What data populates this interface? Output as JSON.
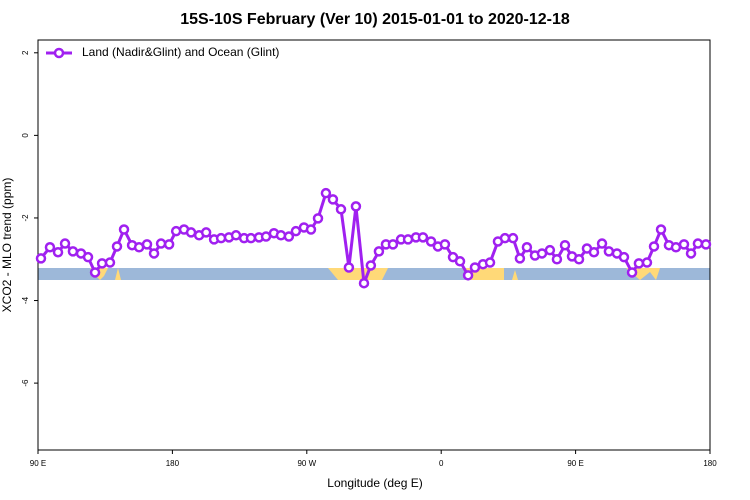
{
  "chart_data": {
    "type": "line",
    "title": "15S-10S February (Ver 10)   2015-01-01 to 2020-12-18",
    "x_label": "Longitude (deg E)",
    "y_label": "XCO2 - MLO trend (ppm)",
    "legend": "top-left",
    "x": [
      92.0,
      98.0,
      103.4,
      108.1,
      113.4,
      118.8,
      123.5,
      128.2,
      132.9,
      138.2,
      142.9,
      147.6,
      153.0,
      157.7,
      163.0,
      167.7,
      172.4,
      177.8,
      182.5,
      187.8,
      192.5,
      197.9,
      202.6,
      207.9,
      212.6,
      217.9,
      222.6,
      228.0,
      232.6,
      238.0,
      242.7,
      248.0,
      252.7,
      258.0,
      262.7,
      268.1,
      272.8,
      277.5,
      282.8,
      287.5,
      292.9,
      298.2,
      302.9,
      308.3,
      312.9,
      318.3,
      323.0,
      327.7,
      333.1,
      337.8,
      343.1,
      347.8,
      353.2,
      357.8,
      362.5,
      367.9,
      372.6,
      378.0,
      382.6,
      388.0,
      392.7,
      398.0,
      402.7,
      408.1,
      412.7,
      417.4,
      422.8,
      427.5,
      432.8,
      437.5,
      442.9,
      447.6,
      452.3,
      457.6,
      462.3,
      467.7,
      472.3,
      477.7,
      482.4,
      487.8,
      492.4,
      497.8,
      502.5,
      507.2,
      512.5,
      517.2,
      522.6,
      527.3,
      531.9,
      537.3
    ],
    "series": [
      {
        "name": "Land (Nadir&Glint) and Ocean (Glint)",
        "color": "#a020f0",
        "values": [
          -2.98,
          -2.71,
          -2.83,
          -2.62,
          -2.81,
          -2.86,
          -2.95,
          -3.32,
          -3.1,
          -3.08,
          -2.69,
          -2.28,
          -2.66,
          -2.71,
          -2.64,
          -2.86,
          -2.62,
          -2.64,
          -2.32,
          -2.28,
          -2.35,
          -2.42,
          -2.35,
          -2.52,
          -2.49,
          -2.47,
          -2.42,
          -2.49,
          -2.49,
          -2.47,
          -2.45,
          -2.37,
          -2.42,
          -2.45,
          -2.32,
          -2.23,
          -2.28,
          -2.01,
          -1.4,
          -1.55,
          -1.79,
          -3.2,
          -1.72,
          -3.58,
          -3.15,
          -2.81,
          -2.64,
          -2.64,
          -2.52,
          -2.52,
          -2.47,
          -2.47,
          -2.57,
          -2.69,
          -2.64,
          -2.95,
          -3.05,
          -3.39,
          -3.2,
          -3.12,
          -3.08,
          -2.57,
          -2.49,
          -2.49,
          -2.98,
          -2.71,
          -2.91,
          -2.86,
          -2.78,
          -3.0,
          -2.66,
          -2.93,
          -3.0,
          -2.74,
          -2.83,
          -2.62,
          -2.81,
          -2.86,
          -2.95,
          -3.32,
          -3.1,
          -3.08,
          -2.69,
          -2.28,
          -2.66,
          -2.71,
          -2.64,
          -2.86,
          -2.62,
          -2.64
        ]
      }
    ],
    "xlim": [
      90,
      540
    ],
    "xticks": [
      {
        "value": 90,
        "label": "90 E"
      },
      180,
      {
        "value": 270,
        "label": "90 W"
      },
      {
        "value": 360,
        "label": "0"
      },
      {
        "value": 450,
        "label": "90 E"
      },
      {
        "value": 540,
        "label": "180"
      }
    ],
    "ylim": [
      -7.62,
      2.31
    ],
    "yticks": [
      2,
      0,
      -2,
      -4,
      -6
    ]
  }
}
